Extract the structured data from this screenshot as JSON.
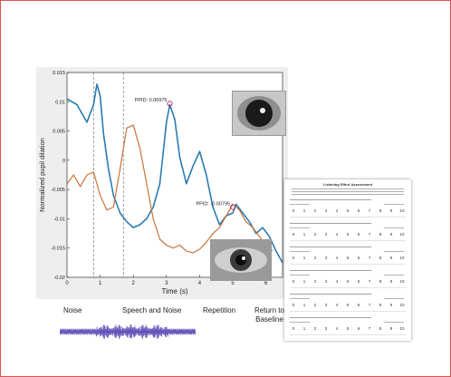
{
  "chart_data": {
    "type": "line",
    "title": "",
    "xlabel": "Time (s)",
    "ylabel": "Normalized pupil dilation",
    "xlim": [
      0,
      6.5
    ],
    "ylim": [
      -0.02,
      0.015
    ],
    "xticks": [
      "0",
      "1",
      "2",
      "3",
      "4",
      "5",
      "6"
    ],
    "yticks": [
      "-0.02",
      "-0.015",
      "-0.01",
      "-0.005",
      "0",
      "0.005",
      "0.01",
      "0.015"
    ],
    "phase_lines_x": [
      0.8,
      1.7
    ],
    "series": [
      {
        "name": "",
        "color": "#2a7bb0",
        "x": [
          0,
          0.3,
          0.6,
          0.8,
          0.9,
          1.0,
          1.1,
          1.25,
          1.4,
          1.6,
          1.8,
          2.0,
          2.2,
          2.4,
          2.6,
          2.8,
          3.0,
          3.1,
          3.25,
          3.4,
          3.6,
          3.8,
          4.0,
          4.2,
          4.4,
          4.6,
          4.8,
          5.0,
          5.1,
          5.3,
          5.5,
          5.7,
          5.9,
          6.1,
          6.3,
          6.5
        ],
        "y": [
          0.0105,
          0.0095,
          0.0065,
          0.0095,
          0.013,
          0.011,
          0.0045,
          -0.0015,
          -0.006,
          -0.009,
          -0.0105,
          -0.0115,
          -0.011,
          -0.01,
          -0.008,
          -0.004,
          0.0065,
          0.0095,
          0.007,
          0.0005,
          -0.004,
          -0.001,
          0.0015,
          -0.0025,
          -0.008,
          -0.011,
          -0.0095,
          -0.009,
          -0.0075,
          -0.009,
          -0.0105,
          -0.0125,
          -0.0115,
          -0.013,
          -0.0155,
          -0.0175
        ]
      },
      {
        "name": "",
        "color": "#c8733a",
        "x": [
          0,
          0.2,
          0.4,
          0.6,
          0.8,
          1.0,
          1.2,
          1.4,
          1.6,
          1.8,
          2.0,
          2.2,
          2.4,
          2.6,
          2.8,
          3.0,
          3.2,
          3.4,
          3.6,
          3.8,
          4.0,
          4.2,
          4.4,
          4.6,
          4.8,
          5.0,
          5.2,
          5.4,
          5.6,
          5.8,
          6.0,
          6.2
        ],
        "y": [
          -0.004,
          -0.0025,
          -0.0045,
          -0.0025,
          -0.002,
          -0.006,
          -0.0085,
          -0.008,
          -0.0015,
          0.0055,
          0.006,
          0.002,
          -0.004,
          -0.01,
          -0.0135,
          -0.0145,
          -0.015,
          -0.0145,
          -0.0155,
          -0.0158,
          -0.0152,
          -0.014,
          -0.0125,
          -0.0115,
          -0.0095,
          -0.0075,
          -0.0085,
          -0.0105,
          -0.0115,
          -0.013,
          -0.0145,
          -0.0155
        ]
      }
    ],
    "annotations": [
      {
        "text": "PPID: 0.00975",
        "x": 3.1,
        "y": 0.0097
      },
      {
        "text": "PPID: -0.00795",
        "x": 5.0,
        "y": -0.008
      }
    ]
  },
  "phases": {
    "noise": "Noise",
    "speech_and_noise": "Speech and Noise",
    "repetition": "Repetition",
    "return_line1": "Return to",
    "return_line2": "Baseline"
  },
  "questionnaire": {
    "title": "Listening Effort Assessment",
    "scale": [
      "0",
      "1",
      "2",
      "3",
      "4",
      "5",
      "6",
      "7",
      "8",
      "9",
      "10"
    ]
  }
}
